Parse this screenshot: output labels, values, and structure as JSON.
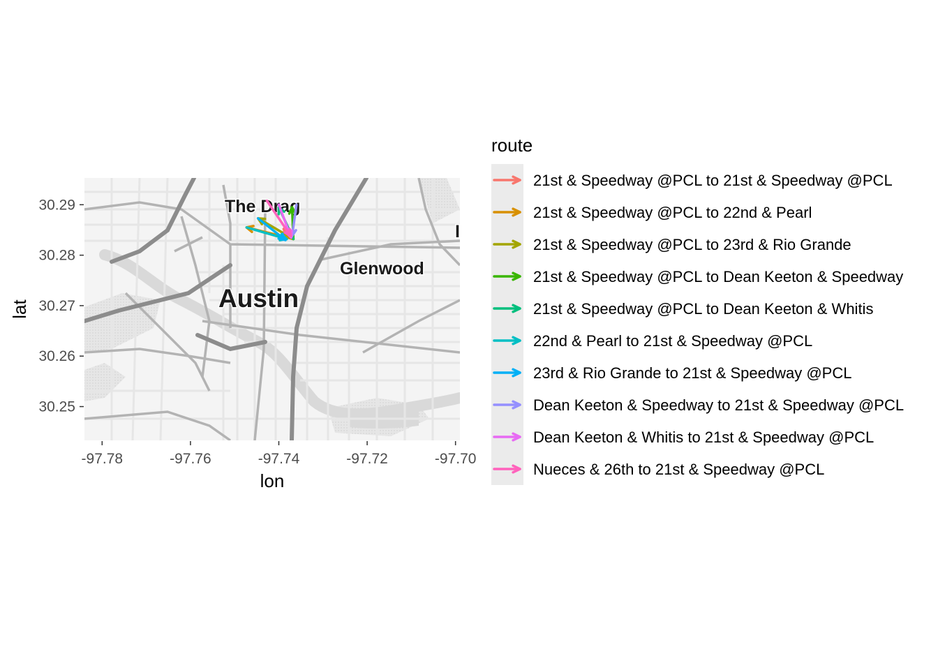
{
  "chart_data": {
    "type": "map",
    "xlabel": "lon",
    "ylabel": "lat",
    "xlim": [
      -97.784,
      -97.699
    ],
    "ylim": [
      30.2433,
      30.2953
    ],
    "xticks": [
      -97.78,
      -97.76,
      -97.74,
      -97.72,
      -97.7
    ],
    "xtick_labels": [
      "-97.78",
      "-97.76",
      "-97.74",
      "-97.72",
      "-97.70"
    ],
    "yticks": [
      30.25,
      30.26,
      30.27,
      30.28,
      30.29
    ],
    "ytick_labels": [
      "30.25",
      "30.26",
      "30.27",
      "30.28",
      "30.29"
    ],
    "basemap": {
      "style": "grayscale street map",
      "labels": [
        "The Drag",
        "Glenwood",
        "Austin",
        "I"
      ]
    },
    "legend": {
      "title": "route",
      "placement": "right"
    },
    "series": [
      {
        "name": "21st & Speedway @PCL to 21st & Speedway @PCL",
        "color": "#F8766D",
        "from": [
          -97.7367,
          30.2832
        ],
        "to": [
          -97.7389,
          30.2852
        ]
      },
      {
        "name": "21st & Speedway @PCL to 22nd & Pearl",
        "color": "#D89000",
        "from": [
          -97.7367,
          30.2832
        ],
        "to": [
          -97.7473,
          30.2855
        ]
      },
      {
        "name": "21st & Speedway @PCL to 23rd & Rio Grande",
        "color": "#A3A500",
        "from": [
          -97.7367,
          30.2832
        ],
        "to": [
          -97.7447,
          30.2873
        ]
      },
      {
        "name": "21st & Speedway @PCL to Dean Keeton & Speedway",
        "color": "#39B600",
        "from": [
          -97.7367,
          30.2832
        ],
        "to": [
          -97.737,
          30.2895
        ]
      },
      {
        "name": "21st & Speedway @PCL to Dean Keeton & Whitis",
        "color": "#00BF7D",
        "from": [
          -97.7367,
          30.2832
        ],
        "to": [
          -97.74,
          30.2895
        ]
      },
      {
        "name": "22nd & Pearl to 21st & Speedway @PCL",
        "color": "#00BFC4",
        "from": [
          -97.7473,
          30.2855
        ],
        "to": [
          -97.7382,
          30.2832
        ]
      },
      {
        "name": "23rd & Rio Grande to 21st & Speedway @PCL",
        "color": "#00B0F6",
        "from": [
          -97.7447,
          30.2873
        ],
        "to": [
          -97.7385,
          30.283
        ]
      },
      {
        "name": "Dean Keeton & Speedway  to 21st & Speedway @PCL",
        "color": "#9590FF",
        "from": [
          -97.736,
          30.29
        ],
        "to": [
          -97.737,
          30.2838
        ]
      },
      {
        "name": "Dean Keeton & Whitis to 21st & Speedway @PCL",
        "color": "#E76BF3",
        "from": [
          -97.74,
          30.29
        ],
        "to": [
          -97.7372,
          30.2835
        ]
      },
      {
        "name": "Nueces & 26th to 21st & Speedway @PCL",
        "color": "#FF62BC",
        "from": [
          -97.7427,
          30.2908
        ],
        "to": [
          -97.7373,
          30.2838
        ]
      }
    ]
  }
}
